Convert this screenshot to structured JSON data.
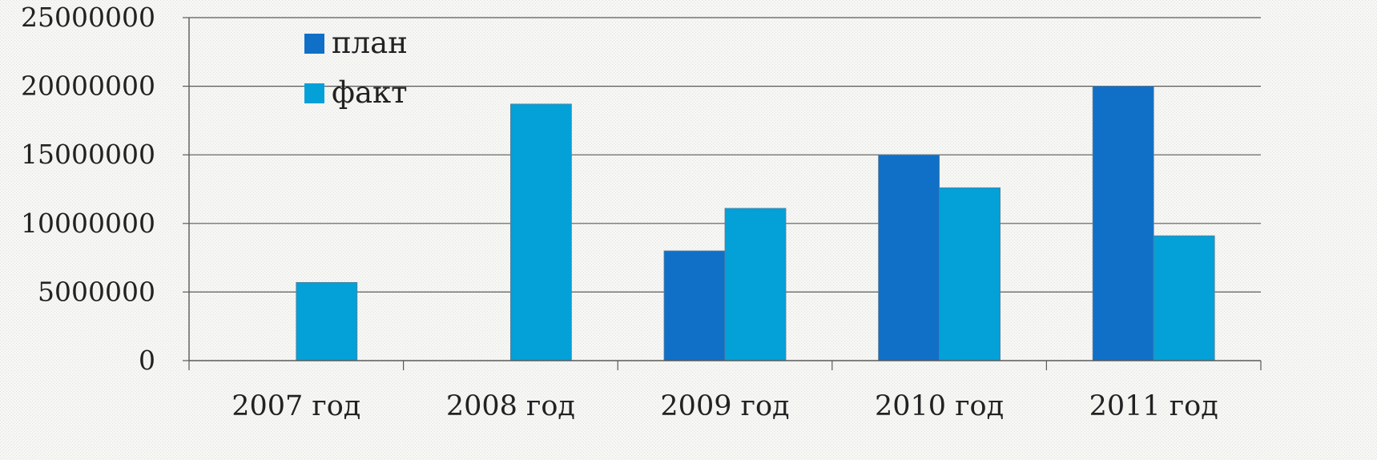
{
  "chart_data": {
    "type": "bar",
    "categories": [
      "2007 год",
      "2008 год",
      "2009 год",
      "2010 год",
      "2011 год"
    ],
    "series": [
      {
        "name": "план",
        "color": "#1070c8",
        "values": [
          0,
          0,
          8000000,
          15000000,
          20000000
        ]
      },
      {
        "name": "факт",
        "color": "#04a0d8",
        "values": [
          5700000,
          18700000,
          11100000,
          12600000,
          9100000
        ]
      }
    ],
    "yticks": [
      "0",
      "5000000",
      "10000000",
      "15000000",
      "20000000",
      "25000000"
    ],
    "ylim": [
      0,
      25000000
    ],
    "grid": true,
    "legend_position": "top-left",
    "title": "",
    "xlabel": "",
    "ylabel": ""
  }
}
